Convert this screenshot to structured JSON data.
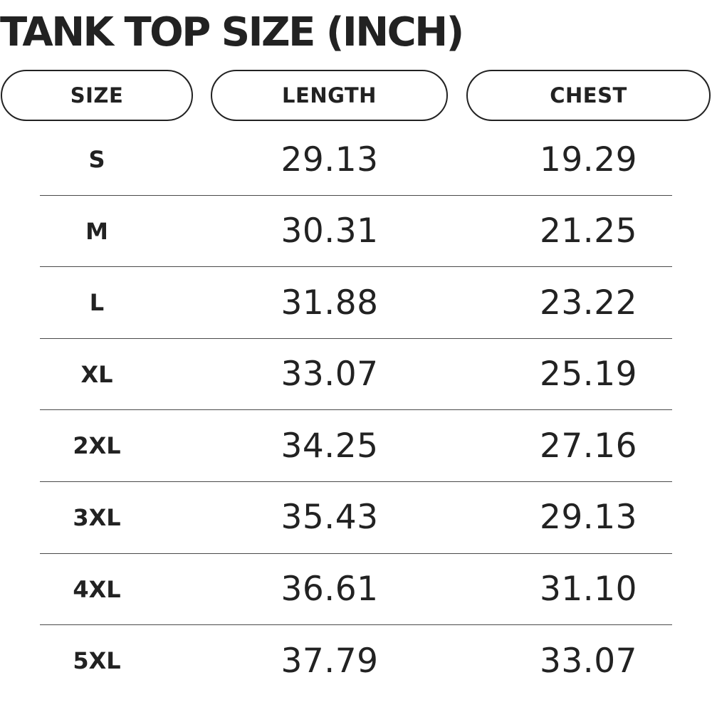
{
  "title": "TANK TOP SIZE (INCH)",
  "headers": {
    "size": "SIZE",
    "length": "LENGTH",
    "chest": "CHEST"
  },
  "rows": [
    {
      "size": "S",
      "length": "29.13",
      "chest": "19.29"
    },
    {
      "size": "M",
      "length": "30.31",
      "chest": "21.25"
    },
    {
      "size": "L",
      "length": "31.88",
      "chest": "23.22"
    },
    {
      "size": "XL",
      "length": "33.07",
      "chest": "25.19"
    },
    {
      "size": "2XL",
      "length": "34.25",
      "chest": "27.16"
    },
    {
      "size": "3XL",
      "length": "35.43",
      "chest": "29.13"
    },
    {
      "size": "4XL",
      "length": "36.61",
      "chest": "31.10"
    },
    {
      "size": "5XL",
      "length": "37.79",
      "chest": "33.07"
    }
  ],
  "colors": {
    "text": "#222222",
    "divider": "#4a4a4a",
    "background": "#ffffff"
  }
}
